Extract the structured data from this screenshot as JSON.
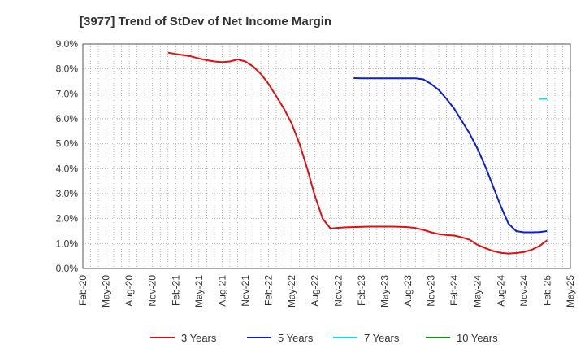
{
  "chart_data": {
    "type": "line",
    "title": "[3977]  Trend of StDev of Net Income Margin",
    "y_ticks": [
      "0.0%",
      "1.0%",
      "2.0%",
      "3.0%",
      "4.0%",
      "5.0%",
      "6.0%",
      "7.0%",
      "8.0%",
      "9.0%"
    ],
    "ylim": [
      0,
      9
    ],
    "x_ticks": [
      "Feb-20",
      "May-20",
      "Aug-20",
      "Nov-20",
      "Feb-21",
      "May-21",
      "Aug-21",
      "Nov-21",
      "Feb-22",
      "May-22",
      "Aug-22",
      "Nov-22",
      "Feb-23",
      "May-23",
      "Aug-23",
      "Nov-23",
      "Feb-24",
      "May-24",
      "Aug-24",
      "Nov-24",
      "Feb-25",
      "May-25"
    ],
    "x_range": [
      "Feb-20",
      "May-25"
    ],
    "grid": true,
    "legend_position": "bottom",
    "series": [
      {
        "name": "3 Years",
        "color": "#dd1111",
        "points": [
          [
            "Jan-21",
            8.65
          ],
          [
            "Feb-21",
            8.6
          ],
          [
            "Mar-21",
            8.55
          ],
          [
            "Apr-21",
            8.5
          ],
          [
            "May-21",
            8.42
          ],
          [
            "Jun-21",
            8.35
          ],
          [
            "Jul-21",
            8.3
          ],
          [
            "Aug-21",
            8.27
          ],
          [
            "Sep-21",
            8.3
          ],
          [
            "Oct-21",
            8.38
          ],
          [
            "Nov-21",
            8.3
          ],
          [
            "Dec-21",
            8.1
          ],
          [
            "Jan-22",
            7.8
          ],
          [
            "Feb-22",
            7.4
          ],
          [
            "Mar-22",
            6.9
          ],
          [
            "Apr-22",
            6.4
          ],
          [
            "May-22",
            5.8
          ],
          [
            "Jun-22",
            5.0
          ],
          [
            "Jul-22",
            4.0
          ],
          [
            "Aug-22",
            2.9
          ],
          [
            "Sep-22",
            2.0
          ],
          [
            "Oct-22",
            1.6
          ],
          [
            "Nov-22",
            1.63
          ],
          [
            "Dec-22",
            1.65
          ],
          [
            "Jan-23",
            1.66
          ],
          [
            "Feb-23",
            1.67
          ],
          [
            "Mar-23",
            1.68
          ],
          [
            "Apr-23",
            1.68
          ],
          [
            "May-23",
            1.68
          ],
          [
            "Jun-23",
            1.68
          ],
          [
            "Jul-23",
            1.67
          ],
          [
            "Aug-23",
            1.66
          ],
          [
            "Sep-23",
            1.62
          ],
          [
            "Oct-23",
            1.55
          ],
          [
            "Nov-23",
            1.45
          ],
          [
            "Dec-23",
            1.38
          ],
          [
            "Jan-24",
            1.34
          ],
          [
            "Feb-24",
            1.32
          ],
          [
            "Mar-24",
            1.25
          ],
          [
            "Apr-24",
            1.15
          ],
          [
            "May-24",
            0.95
          ],
          [
            "Jun-24",
            0.82
          ],
          [
            "Jul-24",
            0.7
          ],
          [
            "Aug-24",
            0.63
          ],
          [
            "Sep-24",
            0.6
          ],
          [
            "Oct-24",
            0.62
          ],
          [
            "Nov-24",
            0.66
          ],
          [
            "Dec-24",
            0.75
          ],
          [
            "Jan-25",
            0.9
          ],
          [
            "Feb-25",
            1.13
          ]
        ]
      },
      {
        "name": "5 Years",
        "color": "#0c1fcc",
        "points": [
          [
            "Jan-23",
            7.63
          ],
          [
            "Feb-23",
            7.62
          ],
          [
            "Mar-23",
            7.62
          ],
          [
            "Apr-23",
            7.62
          ],
          [
            "May-23",
            7.62
          ],
          [
            "Jun-23",
            7.62
          ],
          [
            "Jul-23",
            7.62
          ],
          [
            "Aug-23",
            7.62
          ],
          [
            "Sep-23",
            7.62
          ],
          [
            "Oct-23",
            7.58
          ],
          [
            "Nov-23",
            7.4
          ],
          [
            "Dec-23",
            7.15
          ],
          [
            "Jan-24",
            6.8
          ],
          [
            "Feb-24",
            6.4
          ],
          [
            "Mar-24",
            5.9
          ],
          [
            "Apr-24",
            5.4
          ],
          [
            "May-24",
            4.8
          ],
          [
            "Jun-24",
            4.1
          ],
          [
            "Jul-24",
            3.3
          ],
          [
            "Aug-24",
            2.5
          ],
          [
            "Sep-24",
            1.8
          ],
          [
            "Oct-24",
            1.5
          ],
          [
            "Nov-24",
            1.45
          ],
          [
            "Dec-24",
            1.45
          ],
          [
            "Jan-25",
            1.46
          ],
          [
            "Feb-25",
            1.5
          ]
        ]
      },
      {
        "name": "7 Years",
        "color": "#11e0e0",
        "points": [
          [
            "Jan-25",
            6.8
          ],
          [
            "Feb-25",
            6.8
          ]
        ]
      },
      {
        "name": "10 Years",
        "color": "#118811",
        "points": []
      }
    ]
  }
}
